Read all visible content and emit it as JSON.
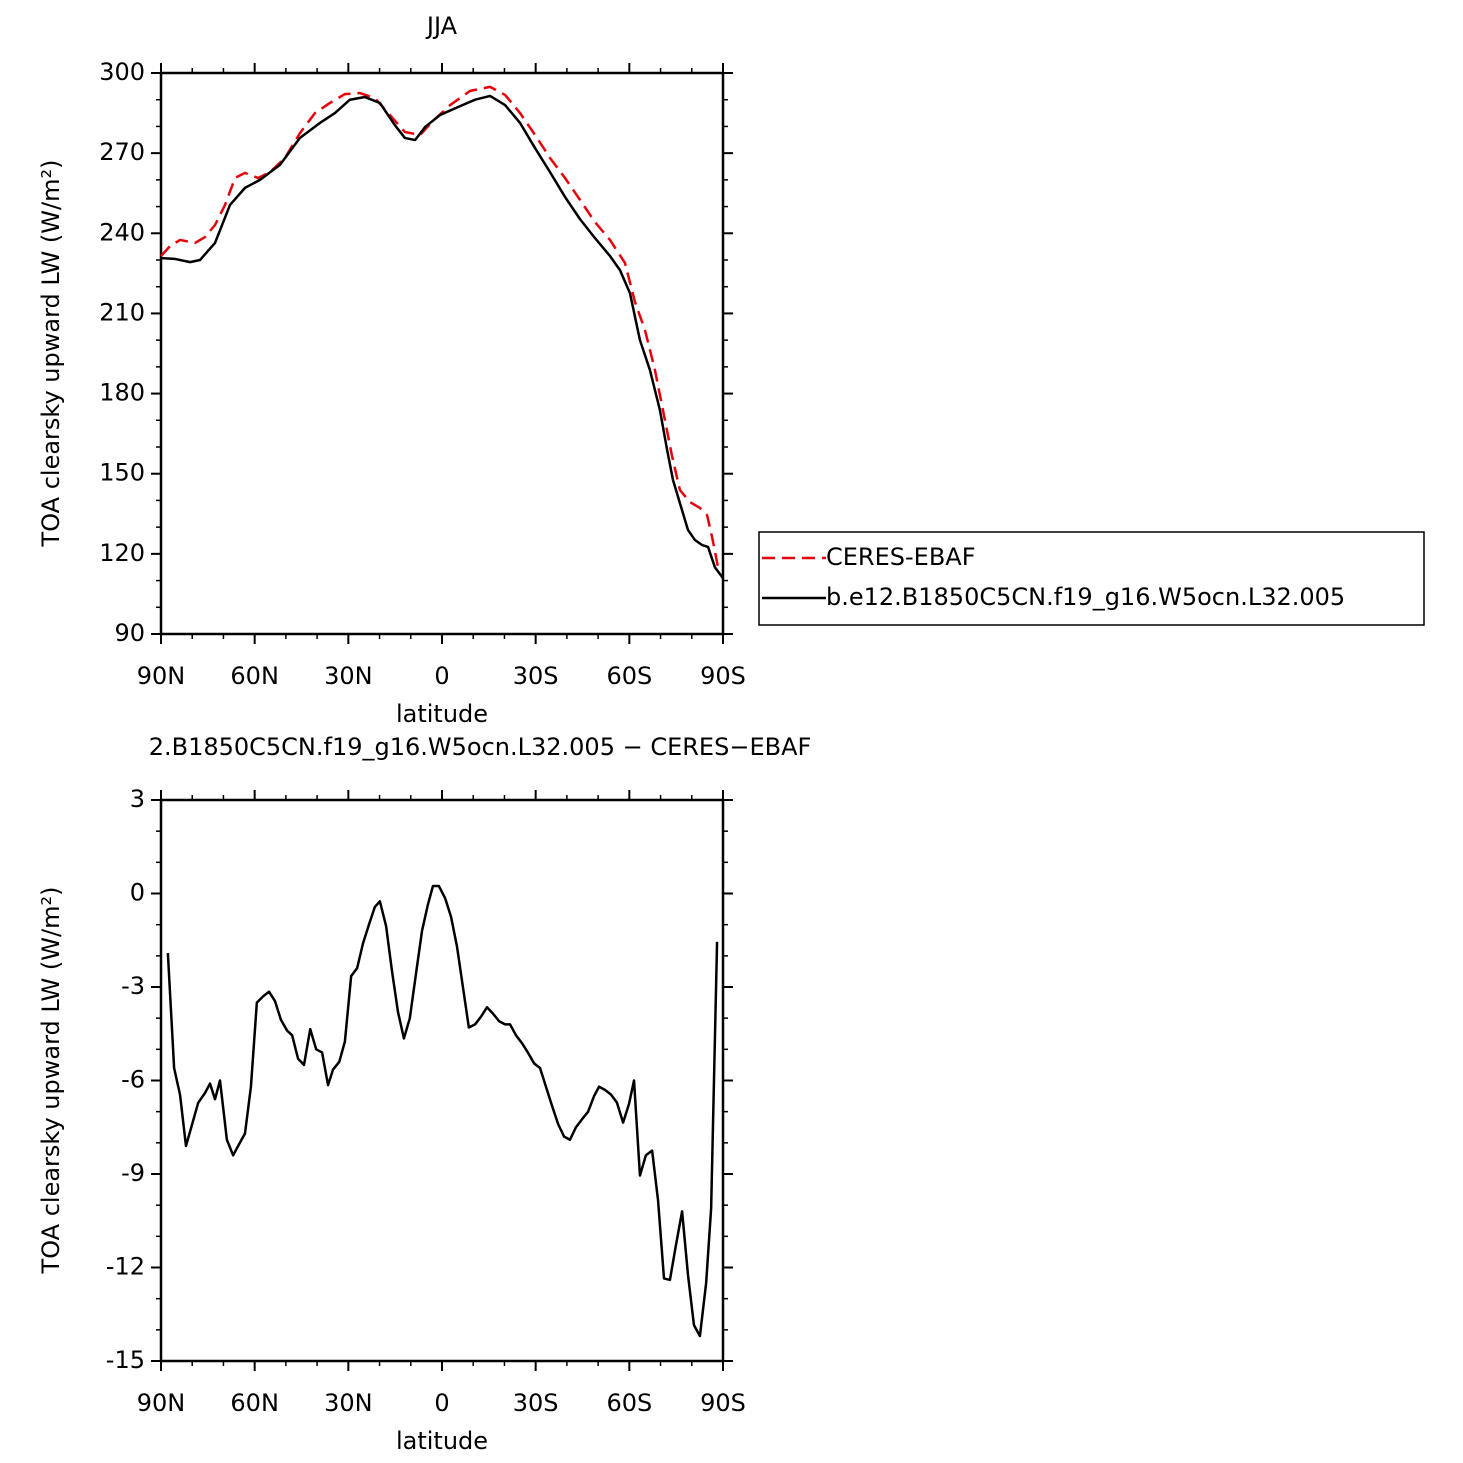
{
  "chart_data": [
    {
      "type": "line",
      "title": "JJA",
      "xlabel": "latitude",
      "ylabel": "TOA clearsky upward LW (W/m²)",
      "xlim": [
        90,
        -90
      ],
      "xticks": [
        {
          "value": 90,
          "label": "90N"
        },
        {
          "value": 60,
          "label": "60N"
        },
        {
          "value": 30,
          "label": "30N"
        },
        0,
        {
          "value": -30,
          "label": "30S"
        },
        {
          "value": -60,
          "label": "60S"
        },
        {
          "value": -90,
          "label": "90S"
        }
      ],
      "xminorticks": [
        80,
        70,
        50,
        40,
        20,
        10,
        -10,
        -20,
        -40,
        -50,
        -70,
        -80
      ],
      "ylim": [
        90,
        300
      ],
      "yticks": [
        90,
        120,
        150,
        180,
        210,
        240,
        270,
        300
      ],
      "yminorticks": [
        100,
        110,
        130,
        140,
        160,
        170,
        190,
        200,
        220,
        230,
        250,
        260,
        280,
        290
      ],
      "legend": "right",
      "series": [
        {
          "name": "CERES-EBAF",
          "color": "#e8000b",
          "dash": true,
          "x": [
            90.0,
            87.1,
            83.9,
            79.1,
            75.9,
            72.7,
            69.5,
            66.3,
            63.1,
            58.9,
            55.1,
            50.3,
            45.5,
            40.7,
            35.9,
            31.1,
            26.3,
            21.5,
            16.7,
            11.9,
            7.0,
            3.2,
            -2.6,
            -9.0,
            -15.4,
            -20.2,
            -25.0,
            -29.8,
            -34.6,
            -39.4,
            -44.2,
            -49.0,
            -53.8,
            -58.6,
            -61.8,
            -65.0,
            -68.2,
            -71.4,
            -73.6,
            -76.2,
            -79.4,
            -82.6,
            -84.9,
            -86.7,
            -88.7
          ],
          "values": [
            231.5,
            235.2,
            237.5,
            236.4,
            238.6,
            243.1,
            250.6,
            260.7,
            262.6,
            260.7,
            262.9,
            268.2,
            277.5,
            285.0,
            288.8,
            292.1,
            292.5,
            290.6,
            284.3,
            277.9,
            276.8,
            281.7,
            288.0,
            293.3,
            294.8,
            291.8,
            285.0,
            276.8,
            268.2,
            260.7,
            252.5,
            244.2,
            237.5,
            228.9,
            214.3,
            203.8,
            188.8,
            170.1,
            157.0,
            143.9,
            139.4,
            137.2,
            134.5,
            125.2,
            113.2
          ]
        },
        {
          "name": "b.e12.B1850C5CN.f19_g16.W5ocn.L32.005",
          "color": "#000000",
          "dash": false,
          "x": [
            90.0,
            85.5,
            80.7,
            77.5,
            72.7,
            67.9,
            63.1,
            58.3,
            51.9,
            45.5,
            39.1,
            34.3,
            29.5,
            24.7,
            19.9,
            15.1,
            11.9,
            8.6,
            5.4,
            0.6,
            -5.8,
            -10.6,
            -15.4,
            -20.2,
            -25.0,
            -29.8,
            -34.6,
            -39.4,
            -44.2,
            -49.0,
            -53.8,
            -57.0,
            -60.2,
            -63.4,
            -66.6,
            -69.8,
            -72.1,
            -74.0,
            -76.2,
            -78.8,
            -81.0,
            -83.3,
            -85.2,
            -87.4,
            -90.0
          ],
          "values": [
            230.7,
            230.4,
            229.2,
            230.0,
            236.4,
            250.6,
            257.0,
            260.0,
            265.6,
            275.7,
            281.3,
            285.0,
            290.0,
            291.0,
            288.8,
            280.5,
            275.7,
            274.9,
            279.8,
            284.3,
            287.6,
            290.0,
            291.4,
            288.0,
            281.3,
            271.9,
            262.9,
            253.6,
            245.3,
            238.2,
            231.5,
            226.2,
            217.6,
            200.0,
            188.8,
            173.8,
            158.9,
            147.6,
            139.0,
            128.9,
            125.2,
            123.3,
            122.6,
            115.0,
            110.9
          ]
        }
      ]
    },
    {
      "type": "line",
      "title": "2.B1850C5CN.f19_g16.W5ocn.L32.005 − CERES−EBAF",
      "xlabel": "latitude",
      "ylabel": "TOA clearsky upward LW (W/m²)",
      "xlim": [
        90,
        -90
      ],
      "xticks": [
        {
          "value": 90,
          "label": "90N"
        },
        {
          "value": 60,
          "label": "60N"
        },
        {
          "value": 30,
          "label": "30N"
        },
        0,
        {
          "value": -30,
          "label": "30S"
        },
        {
          "value": -60,
          "label": "60S"
        },
        {
          "value": -90,
          "label": "90S"
        }
      ],
      "xminorticks": [
        80,
        70,
        50,
        40,
        20,
        10,
        -10,
        -20,
        -40,
        -50,
        -70,
        -80
      ],
      "ylim": [
        -15,
        3
      ],
      "yticks": [
        -15,
        -12,
        -9,
        -6,
        -3,
        0,
        3
      ],
      "yminorticks": [
        -14,
        -13,
        -11,
        -10,
        -8,
        -7,
        -5,
        -4,
        -2,
        -1,
        1,
        2
      ],
      "color": "#000000",
      "x": [
        87.8,
        85.8,
        83.9,
        82.0,
        80.1,
        78.1,
        75.9,
        74.3,
        72.7,
        71.1,
        68.9,
        66.9,
        65.3,
        63.1,
        61.2,
        59.3,
        57.3,
        55.4,
        53.5,
        51.6,
        49.6,
        48.0,
        46.1,
        44.2,
        42.2,
        40.3,
        38.4,
        36.5,
        34.9,
        32.9,
        31.1,
        29.1,
        27.2,
        25.3,
        23.4,
        21.5,
        19.9,
        17.9,
        16.0,
        14.1,
        12.2,
        10.3,
        8.3,
        6.4,
        4.5,
        2.9,
        1.0,
        -1.0,
        -2.9,
        -4.8,
        -6.7,
        -8.6,
        -10.6,
        -12.5,
        -14.4,
        -16.3,
        -18.3,
        -20.2,
        -21.8,
        -23.7,
        -25.6,
        -27.5,
        -29.5,
        -31.4,
        -33.3,
        -35.2,
        -37.2,
        -39.1,
        -41.0,
        -42.9,
        -44.8,
        -46.8,
        -48.7,
        -50.3,
        -52.2,
        -54.1,
        -56.0,
        -58.0,
        -59.9,
        -61.5,
        -63.4,
        -65.3,
        -67.3,
        -69.2,
        -71.1,
        -73.0,
        -74.9,
        -76.9,
        -78.8,
        -80.7,
        -82.6,
        -84.6,
        -86.2,
        -88.1
      ],
      "values": [
        -1.91,
        -5.6,
        -6.46,
        -8.1,
        -7.43,
        -6.72,
        -6.4,
        -6.1,
        -6.6,
        -6.0,
        -7.9,
        -8.4,
        -8.1,
        -7.7,
        -6.2,
        -3.5,
        -3.3,
        -3.15,
        -3.45,
        -4.05,
        -4.4,
        -4.55,
        -5.3,
        -5.5,
        -4.35,
        -5.0,
        -5.1,
        -6.15,
        -5.65,
        -5.4,
        -4.75,
        -2.65,
        -2.4,
        -1.6,
        -1.0,
        -0.43,
        -0.25,
        -1.05,
        -2.5,
        -3.8,
        -4.65,
        -4.0,
        -2.55,
        -1.2,
        -0.35,
        0.24,
        0.24,
        -0.15,
        -0.75,
        -1.7,
        -3.0,
        -4.3,
        -4.2,
        -3.95,
        -3.65,
        -3.85,
        -4.1,
        -4.2,
        -4.2,
        -4.55,
        -4.8,
        -5.1,
        -5.45,
        -5.6,
        -6.2,
        -6.8,
        -7.4,
        -7.8,
        -7.9,
        -7.5,
        -7.25,
        -7.0,
        -6.5,
        -6.2,
        -6.3,
        -6.45,
        -6.7,
        -7.35,
        -6.75,
        -6.0,
        -9.05,
        -8.4,
        -8.25,
        -9.85,
        -12.35,
        -12.4,
        -11.3,
        -10.2,
        -12.25,
        -13.85,
        -14.2,
        -12.5,
        -10.1,
        -1.55
      ]
    }
  ]
}
